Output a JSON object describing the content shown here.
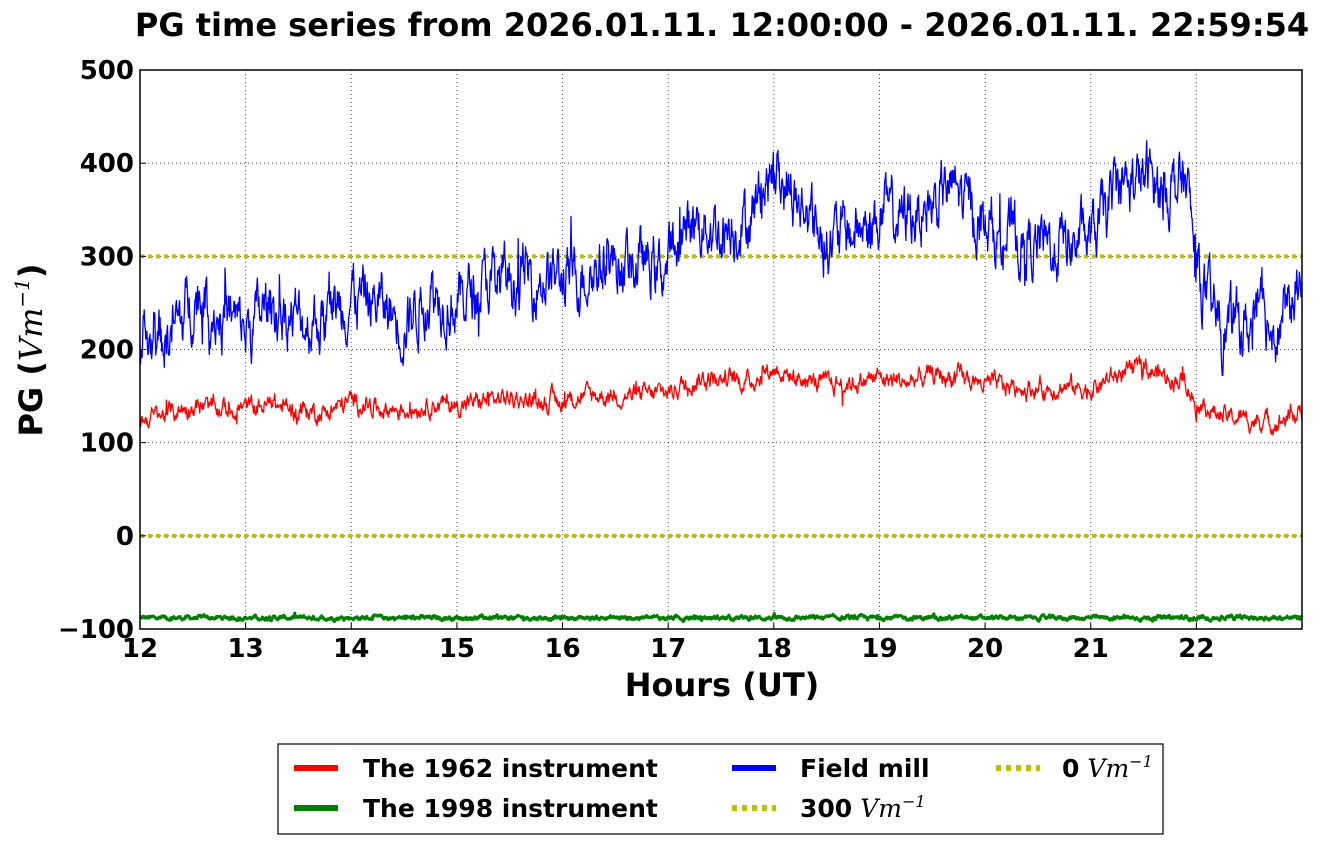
{
  "chart_data": {
    "type": "line",
    "title": "PG time series from 2026.01.11. 12:00:00 - 2026.01.11. 22:59:54",
    "xlabel": "Hours (UT)",
    "ylabel": "PG (",
    "ylabel_unit": "Vm",
    "ylabel_exp": "−1",
    "ylabel_close": ")",
    "xlim": [
      12,
      23
    ],
    "ylim": [
      -100,
      500
    ],
    "xticks": [
      "12",
      "13",
      "14",
      "15",
      "16",
      "17",
      "18",
      "19",
      "20",
      "21",
      "22"
    ],
    "xtick_values": [
      12,
      13,
      14,
      15,
      16,
      17,
      18,
      19,
      20,
      21,
      22
    ],
    "yticks": [
      "−100",
      "0",
      "100",
      "200",
      "300",
      "400",
      "500"
    ],
    "ytick_values": [
      -100,
      0,
      100,
      200,
      300,
      400,
      500
    ],
    "grid": true,
    "legend_position": "bottom",
    "series": [
      {
        "name": "The 1962 instrument",
        "color": "#ff0000",
        "style": "solid",
        "x": [
          12.0,
          12.25,
          12.5,
          12.75,
          13.0,
          13.25,
          13.5,
          13.75,
          14.0,
          14.25,
          14.5,
          14.75,
          15.0,
          15.25,
          15.5,
          15.75,
          16.0,
          16.25,
          16.5,
          16.75,
          17.0,
          17.25,
          17.5,
          17.75,
          18.0,
          18.25,
          18.5,
          18.75,
          19.0,
          19.25,
          19.5,
          19.75,
          20.0,
          20.25,
          20.5,
          20.75,
          21.0,
          21.25,
          21.5,
          21.75,
          21.9,
          22.0,
          22.25,
          22.5,
          22.75,
          22.95,
          23.0
        ],
        "y": [
          125,
          130,
          140,
          135,
          138,
          140,
          135,
          132,
          145,
          138,
          135,
          142,
          140,
          145,
          148,
          145,
          145,
          150,
          152,
          150,
          155,
          168,
          170,
          165,
          180,
          168,
          162,
          165,
          170,
          165,
          172,
          170,
          162,
          160,
          158,
          160,
          158,
          172,
          180,
          170,
          168,
          140,
          128,
          125,
          122,
          130,
          135
        ]
      },
      {
        "name": "The 1998 instrument",
        "color": "#008000",
        "style": "solid",
        "x": [
          12.0,
          23.0
        ],
        "y": [
          -88,
          -88
        ]
      },
      {
        "name": "Field mill",
        "color": "#0000ff",
        "style": "solid",
        "x": [
          12.0,
          12.2,
          12.4,
          12.5,
          12.75,
          13.0,
          13.25,
          13.5,
          13.75,
          14.0,
          14.25,
          14.5,
          14.75,
          15.0,
          15.25,
          15.5,
          15.75,
          16.0,
          16.25,
          16.5,
          16.75,
          17.0,
          17.1,
          17.25,
          17.5,
          17.75,
          17.9,
          18.0,
          18.25,
          18.5,
          18.75,
          19.0,
          19.25,
          19.5,
          19.7,
          19.9,
          20.0,
          20.25,
          20.5,
          20.75,
          21.0,
          21.25,
          21.5,
          21.75,
          21.9,
          22.0,
          22.1,
          22.25,
          22.5,
          22.75,
          22.9,
          22.95,
          23.0
        ],
        "y": [
          200,
          210,
          230,
          260,
          240,
          220,
          250,
          230,
          235,
          260,
          250,
          230,
          265,
          250,
          270,
          275,
          280,
          275,
          285,
          295,
          290,
          290,
          310,
          340,
          330,
          340,
          375,
          390,
          350,
          320,
          325,
          340,
          345,
          355,
          375,
          345,
          330,
          320,
          310,
          315,
          315,
          370,
          385,
          375,
          380,
          290,
          250,
          225,
          225,
          230,
          240,
          275,
          245
        ]
      },
      {
        "name": "300 Vm−1",
        "label_value": "300",
        "label_unit": "Vm",
        "label_exp": "−1",
        "color": "#bfbf00",
        "style": "dotted",
        "x": [
          12.0,
          23.0
        ],
        "y": [
          300,
          300
        ]
      },
      {
        "name": "0 Vm−1",
        "label_value": "0",
        "label_unit": "Vm",
        "label_exp": "−1",
        "color": "#bfbf00",
        "style": "dotted",
        "x": [
          12.0,
          23.0
        ],
        "y": [
          0,
          0
        ]
      }
    ]
  }
}
